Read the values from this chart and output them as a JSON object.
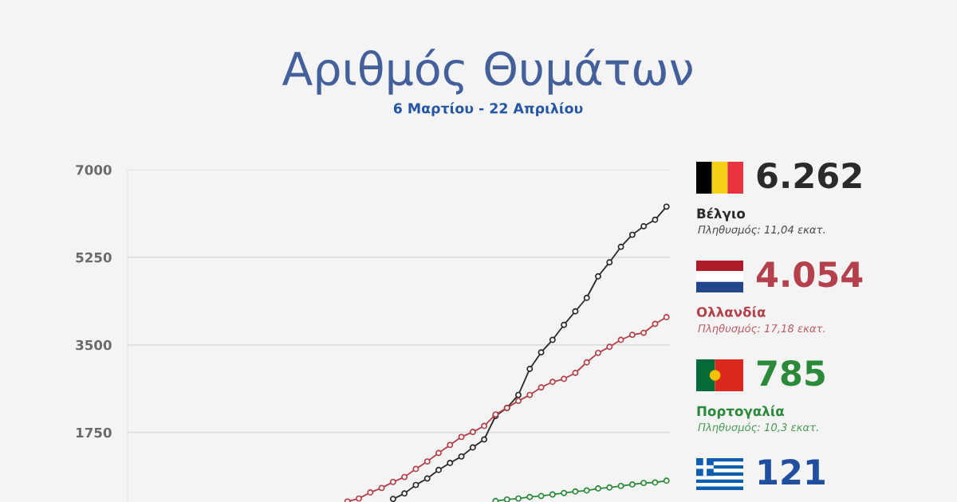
{
  "chart_data": {
    "type": "line",
    "title": "Αριθμός Θυμάτων",
    "subtitle": "6 Μαρτίου - 22 Απριλίου",
    "categories": [
      null,
      null,
      null,
      null,
      null,
      null,
      null,
      null,
      null,
      null,
      null,
      null,
      null,
      null,
      null,
      null,
      null,
      null,
      null,
      null,
      null,
      null,
      null,
      null,
      null,
      null,
      null,
      null,
      null,
      null,
      null,
      null,
      null,
      null,
      null,
      null,
      null,
      null,
      null,
      null,
      null,
      null,
      null,
      null,
      null,
      null,
      null,
      null
    ],
    "series": [
      {
        "name": "Βέλγιο",
        "color": "#2a2a2a",
        "values": [
          null,
          null,
          null,
          null,
          null,
          null,
          null,
          null,
          null,
          null,
          null,
          null,
          null,
          null,
          null,
          null,
          null,
          null,
          null,
          null,
          null,
          null,
          null,
          420,
          530,
          700,
          830,
          1000,
          1140,
          1270,
          1450,
          1610,
          2080,
          2240,
          2500,
          3020,
          3350,
          3600,
          3900,
          4170,
          4440,
          4870,
          5150,
          5460,
          5700,
          5870,
          6000,
          6262
        ]
      },
      {
        "name": "Ολλανδία",
        "color": "#b3404a",
        "values": [
          null,
          null,
          null,
          null,
          null,
          null,
          null,
          null,
          null,
          null,
          null,
          null,
          null,
          null,
          null,
          null,
          null,
          null,
          null,
          370,
          430,
          550,
          640,
          760,
          860,
          1020,
          1170,
          1340,
          1500,
          1660,
          1760,
          1880,
          2110,
          2240,
          2380,
          2500,
          2650,
          2760,
          2820,
          2940,
          3150,
          3340,
          3460,
          3600,
          3700,
          3740,
          3920,
          4054
        ]
      },
      {
        "name": "Πορτογαλία",
        "color": "#2b8a3a",
        "values": [
          null,
          null,
          null,
          null,
          null,
          null,
          null,
          null,
          null,
          null,
          null,
          null,
          null,
          null,
          null,
          null,
          null,
          null,
          null,
          null,
          null,
          null,
          null,
          null,
          null,
          null,
          null,
          null,
          null,
          null,
          null,
          null,
          380,
          410,
          430,
          460,
          480,
          510,
          540,
          570,
          590,
          630,
          650,
          680,
          710,
          740,
          750,
          785
        ]
      },
      {
        "color": "#1f4f9e",
        "values": [
          null,
          null,
          null,
          null,
          null,
          null,
          null,
          null,
          null,
          null,
          null,
          null,
          null,
          null,
          null,
          null,
          null,
          null,
          null,
          null,
          null,
          null,
          null,
          null,
          null,
          null,
          null,
          null,
          null,
          null,
          null,
          null,
          null,
          null,
          null,
          null,
          null,
          null,
          null,
          null,
          null,
          null,
          null,
          null,
          null,
          null,
          null,
          null
        ]
      }
    ],
    "annotations": [
      "6.262",
      "Πληθυσμός: 11,04 εκατ.",
      "4.054",
      "Πληθυσμός: 17,18 εκατ.",
      "785",
      "Πληθυσμός: 10,3 εκατ.",
      "121"
    ],
    "ylim": [
      360,
      7000
    ],
    "yticks": [
      1750,
      3500,
      5250,
      7000
    ],
    "grid": "y",
    "tick_labels": "y",
    "marker": "circle",
    "line_style": "solid",
    "legend": "right"
  }
}
